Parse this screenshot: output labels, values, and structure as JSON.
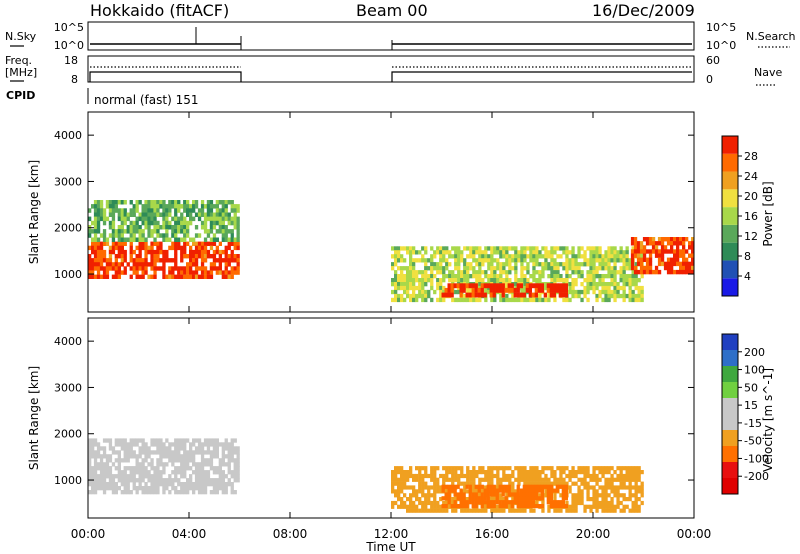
{
  "header": {
    "station": "Hokkaido (fitACF)",
    "beam": "Beam 00",
    "date": "16/Dec/2009"
  },
  "status_panels": {
    "nsky_label": "N.Sky",
    "nsearch_label": "N.Search",
    "freq_label_line1": "Freq.",
    "freq_label_line2": "[MHz]",
    "nave_label": "Nave",
    "cpid_label": "CPID",
    "cpid_value": "normal (fast) 151",
    "nsky_ticks": [
      "10^5",
      "10^0"
    ],
    "nsearch_ticks": [
      "10^5",
      "10^0"
    ],
    "freq_ticks": [
      "18",
      "8"
    ],
    "nave_ticks": [
      "60",
      "0"
    ]
  },
  "x_axis": {
    "label": "Time UT",
    "ticks": [
      "00:00",
      "04:00",
      "08:00",
      "12:00",
      "16:00",
      "20:00",
      "00:00"
    ]
  },
  "colors": {
    "power": [
      "#1a1ae6",
      "#2050b4",
      "#2e8b57",
      "#5aa85a",
      "#a8d84a",
      "#f0e040",
      "#f0a020",
      "#ff6a00",
      "#f02000"
    ],
    "velocity": [
      "#2040c0",
      "#2e6fc8",
      "#3fa83f",
      "#70d040",
      "#c8c8c8",
      "#c8c8c8",
      "#f0a020",
      "#ff7000",
      "#e81010",
      "#e00000"
    ]
  },
  "chart_data": [
    {
      "type": "heatmap",
      "panel": "power",
      "ylabel": "Slant Range [km]",
      "xlabel": "",
      "ylim": [
        180,
        4500
      ],
      "yticks": [
        1000,
        2000,
        3000,
        4000
      ],
      "xlim_hours": [
        0,
        24
      ],
      "colorbar_label": "Power [dB]",
      "colorbar_ticks": [
        "4",
        "8",
        "12",
        "16",
        "20",
        "24",
        "28"
      ],
      "colorbar_range": [
        0,
        30
      ],
      "data_gap_hours": [
        6,
        12
      ],
      "regions": [
        {
          "t0": 0.0,
          "t1": 6.0,
          "r0": 900,
          "r1": 1700,
          "power": 27
        },
        {
          "t0": 0.0,
          "t1": 6.0,
          "r0": 1700,
          "r1": 2600,
          "power": 12
        },
        {
          "t0": 12.0,
          "t1": 22.0,
          "r0": 400,
          "r1": 1600,
          "power": 16
        },
        {
          "t0": 14.0,
          "t1": 19.0,
          "r0": 500,
          "r1": 800,
          "power": 29
        },
        {
          "t0": 21.5,
          "t1": 24.0,
          "r0": 1000,
          "r1": 1800,
          "power": 27
        }
      ]
    },
    {
      "type": "heatmap",
      "panel": "velocity",
      "ylabel": "Slant Range [km]",
      "xlabel": "Time UT",
      "ylim": [
        180,
        4500
      ],
      "yticks": [
        1000,
        2000,
        3000,
        4000
      ],
      "xlim_hours": [
        0,
        24
      ],
      "colorbar_label": "Velocity [m s^-1]",
      "colorbar_ticks": [
        "-200",
        "-100",
        "-50",
        "-15",
        "15",
        "50",
        "100",
        "200"
      ],
      "colorbar_range": [
        -250,
        250
      ],
      "data_gap_hours": [
        6,
        12
      ],
      "regions": [
        {
          "t0": 0.0,
          "t1": 6.0,
          "r0": 700,
          "r1": 1900,
          "velocity": 0
        },
        {
          "t0": 12.0,
          "t1": 22.0,
          "r0": 300,
          "r1": 1300,
          "velocity": -30
        },
        {
          "t0": 14.0,
          "t1": 19.0,
          "r0": 400,
          "r1": 900,
          "velocity": -60
        }
      ]
    }
  ]
}
